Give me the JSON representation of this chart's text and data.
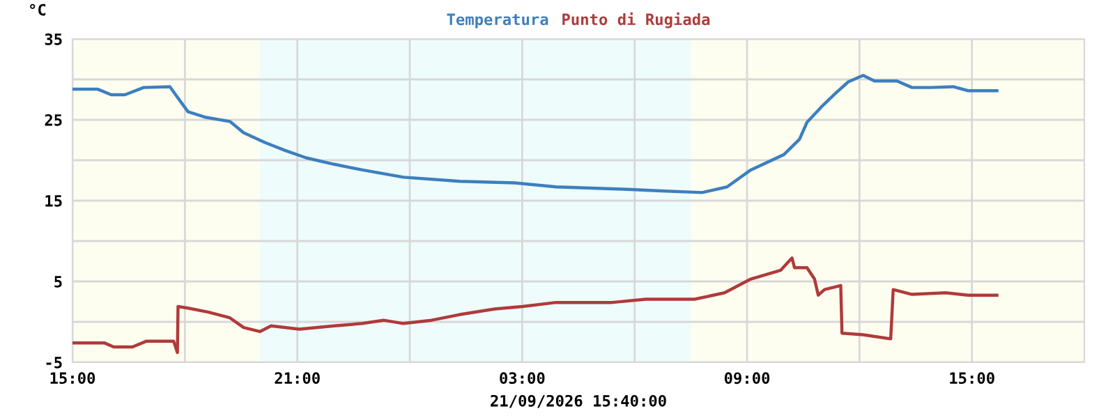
{
  "chart_data": {
    "type": "line",
    "xlabel": "21/09/2026 15:40:00",
    "ylabel": "°C",
    "xlim": [
      "2026-09-20T15:00",
      "2026-09-21T18:00"
    ],
    "ylim": [
      -5,
      35
    ],
    "xticks": [
      {
        "value": "2026-09-20T15:00",
        "label": "15:00"
      },
      {
        "value": "2026-09-20T18:00",
        "label": null
      },
      {
        "value": "2026-09-20T21:00",
        "label": "21:00"
      },
      {
        "value": "2026-09-21T00:00",
        "label": null
      },
      {
        "value": "2026-09-21T03:00",
        "label": "03:00"
      },
      {
        "value": "2026-09-21T06:00",
        "label": null
      },
      {
        "value": "2026-09-21T09:00",
        "label": "09:00"
      },
      {
        "value": "2026-09-21T12:00",
        "label": null
      },
      {
        "value": "2026-09-21T15:00",
        "label": "15:00"
      }
    ],
    "yticks": [
      -5,
      {
        "value": 0,
        "label": null
      },
      5,
      {
        "value": 10,
        "label": null
      },
      15,
      {
        "value": 20,
        "label": null
      },
      25,
      {
        "value": 30,
        "label": null
      },
      35
    ],
    "grid": true,
    "legend": "top",
    "bands": [
      {
        "axis": "x",
        "from": "2026-09-20T15:00",
        "to": "2026-09-21T18:00",
        "color": "#fefef0"
      },
      {
        "axis": "x",
        "from": "2026-09-20T20:00",
        "to": "2026-09-21T07:30",
        "color": "#eefcfc"
      }
    ],
    "series": [
      {
        "name": "Temperatura",
        "color": "#3d7fbf",
        "x": [
          "2026-09-20T15:00",
          "2026-09-20T15:40",
          "2026-09-20T16:02",
          "2026-09-20T16:24",
          "2026-09-20T16:54",
          "2026-09-20T17:36",
          "2026-09-20T17:48",
          "2026-09-20T18:05",
          "2026-09-20T18:34",
          "2026-09-20T19:12",
          "2026-09-20T19:34",
          "2026-09-20T20:08",
          "2026-09-20T20:41",
          "2026-09-20T21:14",
          "2026-09-20T21:59",
          "2026-09-20T22:44",
          "2026-09-20T23:50",
          "2026-09-21T01:20",
          "2026-09-21T02:48",
          "2026-09-21T03:54",
          "2026-09-21T05:48",
          "2026-09-21T06:42",
          "2026-09-21T07:48",
          "2026-09-21T08:28",
          "2026-09-21T09:06",
          "2026-09-21T09:59",
          "2026-09-21T10:24",
          "2026-09-21T10:36",
          "2026-09-21T10:59",
          "2026-09-21T11:22",
          "2026-09-21T11:42",
          "2026-09-21T12:00",
          "2026-09-21T12:06",
          "2026-09-21T12:24",
          "2026-09-21T13:00",
          "2026-09-21T13:24",
          "2026-09-21T13:54",
          "2026-09-21T14:30",
          "2026-09-21T14:54",
          "2026-09-21T15:40"
        ],
        "values": [
          28.8,
          28.8,
          28.1,
          28.1,
          29.0,
          29.1,
          27.8,
          26.0,
          25.3,
          24.8,
          23.4,
          22.2,
          21.2,
          20.3,
          19.5,
          18.8,
          17.9,
          17.4,
          17.2,
          16.7,
          16.4,
          16.2,
          16.0,
          16.7,
          18.8,
          20.7,
          22.6,
          24.7,
          26.6,
          28.3,
          29.7,
          30.3,
          30.5,
          29.8,
          29.8,
          29.0,
          29.0,
          29.1,
          28.6,
          28.6
        ]
      },
      {
        "name": "Punto di Rugiada",
        "color": "#b03a3a",
        "x": [
          "2026-09-20T15:00",
          "2026-09-20T15:51",
          "2026-09-20T16:06",
          "2026-09-20T16:36",
          "2026-09-20T16:58",
          "2026-09-20T17:42",
          "2026-09-20T17:48",
          "2026-09-20T17:49",
          "2026-09-20T18:05",
          "2026-09-20T18:38",
          "2026-09-20T19:12",
          "2026-09-20T19:34",
          "2026-09-20T20:00",
          "2026-09-20T20:18",
          "2026-09-20T21:03",
          "2026-09-20T21:59",
          "2026-09-20T22:44",
          "2026-09-20T23:18",
          "2026-09-20T23:50",
          "2026-09-21T00:35",
          "2026-09-21T01:20",
          "2026-09-21T02:16",
          "2026-09-21T03:00",
          "2026-09-21T03:54",
          "2026-09-21T05:24",
          "2026-09-21T06:18",
          "2026-09-21T07:36",
          "2026-09-21T08:24",
          "2026-09-21T09:06",
          "2026-09-21T09:54",
          "2026-09-21T10:12",
          "2026-09-21T10:16",
          "2026-09-21T10:36",
          "2026-09-21T10:48",
          "2026-09-21T10:54",
          "2026-09-21T11:04",
          "2026-09-21T11:30",
          "2026-09-21T11:32",
          "2026-09-21T12:06",
          "2026-09-21T12:50",
          "2026-09-21T12:54",
          "2026-09-21T13:24",
          "2026-09-21T14:18",
          "2026-09-21T14:54",
          "2026-09-21T15:40"
        ],
        "values": [
          -2.6,
          -2.6,
          -3.1,
          -3.1,
          -2.4,
          -2.4,
          -3.8,
          1.9,
          1.7,
          1.2,
          0.5,
          -0.7,
          -1.2,
          -0.5,
          -0.9,
          -0.5,
          -0.2,
          0.2,
          -0.2,
          0.2,
          0.9,
          1.6,
          1.9,
          2.4,
          2.4,
          2.8,
          2.8,
          3.6,
          5.3,
          6.4,
          7.9,
          6.7,
          6.7,
          5.3,
          3.3,
          4.0,
          4.5,
          -1.4,
          -1.6,
          -2.1,
          4.0,
          3.4,
          3.6,
          3.3,
          3.3
        ]
      }
    ]
  }
}
